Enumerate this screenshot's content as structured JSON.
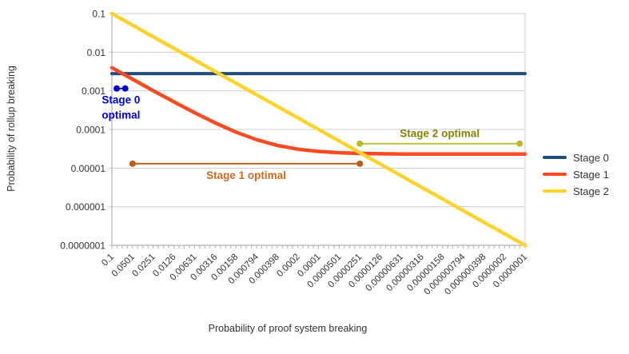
{
  "chart_data": {
    "type": "line",
    "title": "",
    "xlabel": "Probability of proof system breaking",
    "ylabel": "Probability of rollup breaking",
    "x_scale": "log",
    "y_scale": "log",
    "xlim": [
      0.1,
      1e-07
    ],
    "ylim": [
      0.1,
      1e-07
    ],
    "grid": "horizontal",
    "legend_position": "right",
    "x_ticks": [
      "0.1",
      "0.0501",
      "0.0251",
      "0.0126",
      "0.00631",
      "0.00316",
      "0.00158",
      "0.000794",
      "0.000398",
      "0.0002",
      "0.0001",
      "0.0000501",
      "0.0000251",
      "0.0000126",
      "0.00000631",
      "0.00000316",
      "0.00000158",
      "0.000000794",
      "0.000000398",
      "0.0000002",
      "0.0000001"
    ],
    "y_ticks": [
      "0.1",
      "0.01",
      "0.001",
      "0.0001",
      "0.00001",
      "0.000001",
      "0.0000001"
    ],
    "series": [
      {
        "name": "Stage 0",
        "color": "#1f4e79",
        "width": 4,
        "points": [
          [
            0.1,
            0.0028
          ],
          [
            1e-07,
            0.0028
          ]
        ]
      },
      {
        "name": "Stage 1",
        "color": "#fe4a22",
        "width": 4.5,
        "points": [
          [
            0.1,
            0.00397
          ],
          [
            0.0501,
            0.002
          ],
          [
            0.0251,
            0.00101
          ],
          [
            0.0126,
            0.00052
          ],
          [
            0.00631,
            0.000272
          ],
          [
            0.00316,
            0.000148
          ],
          [
            0.00158,
            8.54e-05
          ],
          [
            0.000794,
            5.44e-05
          ],
          [
            0.000398,
            3.87e-05
          ],
          [
            0.0002,
            3.09e-05
          ],
          [
            0.0001,
            2.7e-05
          ],
          [
            5.01e-05,
            2.5e-05
          ],
          [
            2.51e-05,
            2.4e-05
          ],
          [
            1.26e-05,
            2.35e-05
          ],
          [
            6.31e-06,
            2.32e-05
          ],
          [
            1e-06,
            2.31e-05
          ],
          [
            1e-07,
            2.3e-05
          ]
        ]
      },
      {
        "name": "Stage 2",
        "color": "#ffd32b",
        "width": 4.5,
        "points": [
          [
            0.1,
            0.1
          ],
          [
            1e-07,
            1e-07
          ]
        ]
      }
    ],
    "annotations": [
      {
        "id": "stage-0-optimal",
        "label_lines": [
          "Stage 0",
          "optimal"
        ],
        "text_color": "#0000cc",
        "line_color": "#0000cc",
        "x_from": 0.085,
        "x_to": 0.064,
        "y": 0.00115,
        "label_pos": "below"
      },
      {
        "id": "stage-1-optimal",
        "label_lines": [
          "Stage 1 optimal"
        ],
        "text_color": "#d2691e",
        "line_color": "#c05a11",
        "x_from": 0.0501,
        "x_to": 2.51e-05,
        "y": 1.3e-05,
        "label_pos": "below"
      },
      {
        "id": "stage-2-optimal",
        "label_lines": [
          "Stage 2 optimal"
        ],
        "text_color": "#838600",
        "line_color": "#b8bb21",
        "x_from": 2.51e-05,
        "x_to": 1.2e-07,
        "y": 4.3e-05,
        "label_pos": "above"
      }
    ],
    "style": {
      "grid_color": "#cccccc",
      "axis_color": "#b0b0b0",
      "tick_label_color": "#333333"
    }
  }
}
